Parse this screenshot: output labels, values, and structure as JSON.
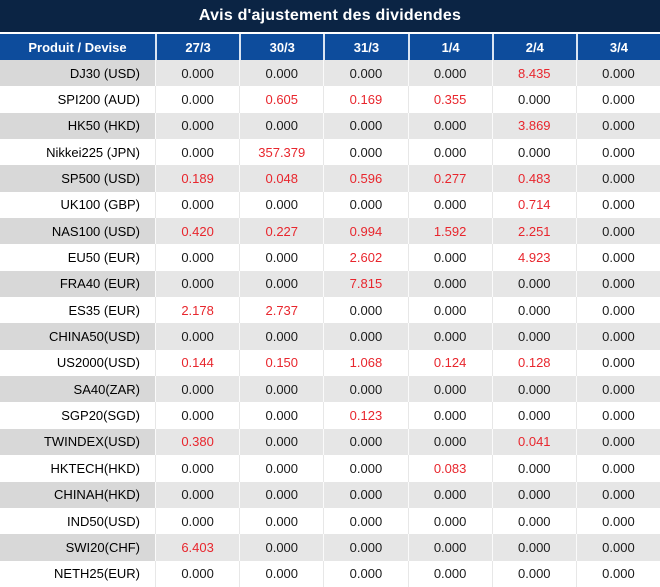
{
  "title": "Avis d'ajustement des dividendes",
  "colors": {
    "navy": "#0b2444",
    "header_blue": "#0d4c9c",
    "separator": "#d9e4f2",
    "red": "#e8262d",
    "gray_product": "#d8d8d8",
    "gray_value": "#e6e6e6",
    "value_text": "#1b1b1b"
  },
  "table": {
    "product_header": "Produit / Devise",
    "date_headers": [
      "27/3",
      "30/3",
      "31/3",
      "1/4",
      "2/4",
      "3/4"
    ],
    "rows": [
      {
        "product": "DJ30 (USD)",
        "values": [
          "0.000",
          "0.000",
          "0.000",
          "0.000",
          "8.435",
          "0.000"
        ]
      },
      {
        "product": "SPI200 (AUD)",
        "values": [
          "0.000",
          "0.605",
          "0.169",
          "0.355",
          "0.000",
          "0.000"
        ]
      },
      {
        "product": "HK50 (HKD)",
        "values": [
          "0.000",
          "0.000",
          "0.000",
          "0.000",
          "3.869",
          "0.000"
        ]
      },
      {
        "product": "Nikkei225 (JPN)",
        "values": [
          "0.000",
          "357.379",
          "0.000",
          "0.000",
          "0.000",
          "0.000"
        ]
      },
      {
        "product": "SP500 (USD)",
        "values": [
          "0.189",
          "0.048",
          "0.596",
          "0.277",
          "0.483",
          "0.000"
        ]
      },
      {
        "product": "UK100 (GBP)",
        "values": [
          "0.000",
          "0.000",
          "0.000",
          "0.000",
          "0.714",
          "0.000"
        ]
      },
      {
        "product": "NAS100 (USD)",
        "values": [
          "0.420",
          "0.227",
          "0.994",
          "1.592",
          "2.251",
          "0.000"
        ]
      },
      {
        "product": "EU50 (EUR)",
        "values": [
          "0.000",
          "0.000",
          "2.602",
          "0.000",
          "4.923",
          "0.000"
        ]
      },
      {
        "product": "FRA40 (EUR)",
        "values": [
          "0.000",
          "0.000",
          "7.815",
          "0.000",
          "0.000",
          "0.000"
        ]
      },
      {
        "product": "ES35 (EUR)",
        "values": [
          "2.178",
          "2.737",
          "0.000",
          "0.000",
          "0.000",
          "0.000"
        ]
      },
      {
        "product": "CHINA50(USD)",
        "values": [
          "0.000",
          "0.000",
          "0.000",
          "0.000",
          "0.000",
          "0.000"
        ]
      },
      {
        "product": "US2000(USD)",
        "values": [
          "0.144",
          "0.150",
          "1.068",
          "0.124",
          "0.128",
          "0.000"
        ]
      },
      {
        "product": "SA40(ZAR)",
        "values": [
          "0.000",
          "0.000",
          "0.000",
          "0.000",
          "0.000",
          "0.000"
        ]
      },
      {
        "product": "SGP20(SGD)",
        "values": [
          "0.000",
          "0.000",
          "0.123",
          "0.000",
          "0.000",
          "0.000"
        ]
      },
      {
        "product": "TWINDEX(USD)",
        "values": [
          "0.380",
          "0.000",
          "0.000",
          "0.000",
          "0.041",
          "0.000"
        ]
      },
      {
        "product": "HKTECH(HKD)",
        "values": [
          "0.000",
          "0.000",
          "0.000",
          "0.083",
          "0.000",
          "0.000"
        ]
      },
      {
        "product": "CHINAH(HKD)",
        "values": [
          "0.000",
          "0.000",
          "0.000",
          "0.000",
          "0.000",
          "0.000"
        ]
      },
      {
        "product": "IND50(USD)",
        "values": [
          "0.000",
          "0.000",
          "0.000",
          "0.000",
          "0.000",
          "0.000"
        ]
      },
      {
        "product": "SWI20(CHF)",
        "values": [
          "6.403",
          "0.000",
          "0.000",
          "0.000",
          "0.000",
          "0.000"
        ]
      },
      {
        "product": "NETH25(EUR)",
        "values": [
          "0.000",
          "0.000",
          "0.000",
          "0.000",
          "0.000",
          "0.000"
        ]
      }
    ]
  }
}
